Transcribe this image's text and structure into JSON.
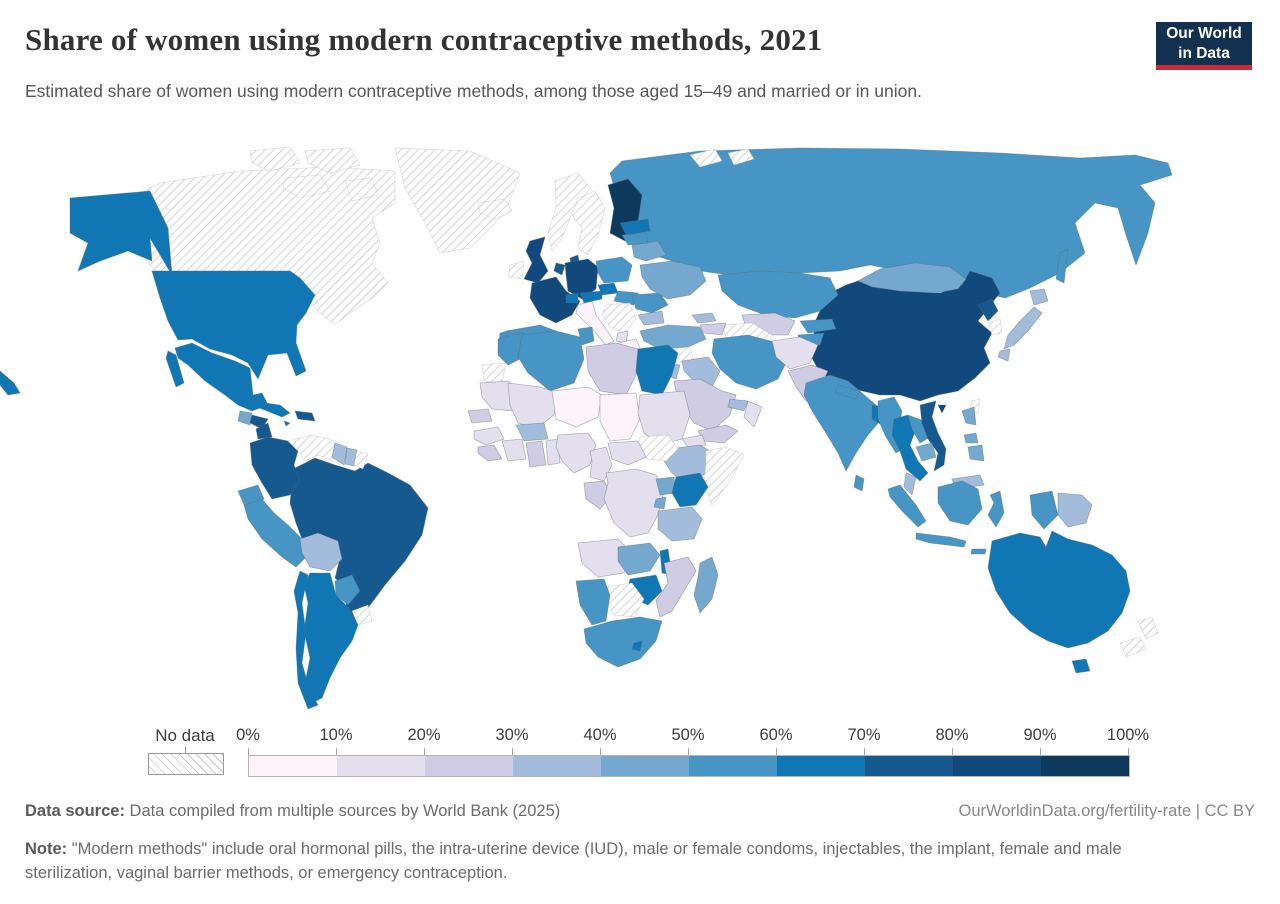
{
  "header": {
    "title": "Share of women using modern contraceptive methods, 2021",
    "subtitle": "Estimated share of women using modern contraceptive methods, among those aged 15–49 and married or in union.",
    "logo_line1": "Our World",
    "logo_line2": "in Data"
  },
  "legend": {
    "no_data_label": "No data",
    "tick_labels": [
      "0%",
      "10%",
      "20%",
      "30%",
      "40%",
      "50%",
      "60%",
      "70%",
      "80%",
      "90%",
      "100%"
    ],
    "colors": [
      "#fdf3f9",
      "#e4dfee",
      "#cfcce3",
      "#a3bcdc",
      "#74a8cf",
      "#4795c4",
      "#1076b4",
      "#15598f",
      "#11497c",
      "#0c395c"
    ]
  },
  "chart_data": {
    "type": "choropleth_map",
    "title": "Share of women using modern contraceptive methods, 2021",
    "unit": "%",
    "year": 2021,
    "bins": [
      0,
      10,
      20,
      30,
      40,
      50,
      60,
      70,
      80,
      90,
      100
    ],
    "countries": [
      {
        "name": "Canada",
        "no_data": true
      },
      {
        "name": "Greenland",
        "no_data": true
      },
      {
        "name": "United States",
        "value": 65
      },
      {
        "name": "Mexico",
        "value": 68
      },
      {
        "name": "Guatemala",
        "value": 47
      },
      {
        "name": "Honduras",
        "value": 72
      },
      {
        "name": "Nicaragua",
        "value": 77
      },
      {
        "name": "Costa Rica",
        "value": 74
      },
      {
        "name": "Panama",
        "value": 55
      },
      {
        "name": "Cuba",
        "value": 68
      },
      {
        "name": "Jamaica",
        "value": 62
      },
      {
        "name": "Dominican Republic",
        "value": 72
      },
      {
        "name": "Colombia",
        "value": 76
      },
      {
        "name": "Venezuela",
        "no_data": true
      },
      {
        "name": "Guyana",
        "value": 33
      },
      {
        "name": "Suriname",
        "value": 37
      },
      {
        "name": "French Guiana",
        "no_data": true
      },
      {
        "name": "Ecuador",
        "value": 58
      },
      {
        "name": "Peru",
        "value": 52
      },
      {
        "name": "Bolivia",
        "value": 38
      },
      {
        "name": "Brazil",
        "value": 77
      },
      {
        "name": "Paraguay",
        "value": 57
      },
      {
        "name": "Uruguay",
        "no_data": true
      },
      {
        "name": "Argentina",
        "value": 65
      },
      {
        "name": "Chile",
        "value": 67
      },
      {
        "name": "Iceland",
        "no_data": true
      },
      {
        "name": "Ireland",
        "no_data": true
      },
      {
        "name": "United Kingdom",
        "value": 84
      },
      {
        "name": "France",
        "value": 83
      },
      {
        "name": "Germany",
        "value": 86
      },
      {
        "name": "Norway",
        "no_data": true
      },
      {
        "name": "Sweden",
        "no_data": true
      },
      {
        "name": "Finland",
        "value": 92
      },
      {
        "name": "Denmark",
        "value": 72
      },
      {
        "name": "Netherlands",
        "value": 72
      },
      {
        "name": "Spain",
        "value": 56
      },
      {
        "name": "Portugal",
        "value": 56
      },
      {
        "name": "Italy",
        "value": 8
      },
      {
        "name": "Greece",
        "value": 9
      },
      {
        "name": "Switzerland",
        "value": 60
      },
      {
        "name": "Austria",
        "value": 65
      },
      {
        "name": "Poland",
        "value": 52
      },
      {
        "name": "Czechia",
        "value": 65
      },
      {
        "name": "Hungary",
        "value": 55
      },
      {
        "name": "Serbia",
        "no_data": true
      },
      {
        "name": "Albania",
        "value": 15
      },
      {
        "name": "Bulgaria",
        "value": 35
      },
      {
        "name": "Romania",
        "value": 55
      },
      {
        "name": "Ukraine",
        "value": 44
      },
      {
        "name": "Belarus",
        "value": 48
      },
      {
        "name": "Lithuania",
        "value": 55
      },
      {
        "name": "Latvia",
        "value": 60
      },
      {
        "name": "Russia",
        "value": 55
      },
      {
        "name": "Kazakhstan",
        "value": 50
      },
      {
        "name": "Uzbekistan",
        "value": 28
      },
      {
        "name": "Turkmenistan",
        "no_data": true
      },
      {
        "name": "Kyrgyzstan",
        "value": 55
      },
      {
        "name": "Tajikistan",
        "value": 50
      },
      {
        "name": "Georgia",
        "value": 30
      },
      {
        "name": "Azerbaijan",
        "value": 25
      },
      {
        "name": "Turkey",
        "value": 46
      },
      {
        "name": "Syria",
        "no_data": true
      },
      {
        "name": "Iraq",
        "value": 36
      },
      {
        "name": "Iran",
        "value": 55
      },
      {
        "name": "Israel",
        "value": 50
      },
      {
        "name": "Jordan",
        "value": 35
      },
      {
        "name": "Saudi Arabia",
        "value": 25
      },
      {
        "name": "United Arab Emirates",
        "value": 30
      },
      {
        "name": "Oman",
        "value": 16
      },
      {
        "name": "Yemen",
        "value": 28
      },
      {
        "name": "Afghanistan",
        "value": 17
      },
      {
        "name": "Pakistan",
        "value": 25
      },
      {
        "name": "India",
        "value": 56
      },
      {
        "name": "Nepal",
        "value": 50
      },
      {
        "name": "Bangladesh",
        "value": 62
      },
      {
        "name": "Sri Lanka",
        "value": 52
      },
      {
        "name": "Myanmar",
        "value": 52
      },
      {
        "name": "Thailand",
        "value": 67
      },
      {
        "name": "Laos",
        "value": 54
      },
      {
        "name": "Cambodia",
        "value": 42
      },
      {
        "name": "Vietnam",
        "value": 72
      },
      {
        "name": "Malaysia",
        "value": 36
      },
      {
        "name": "China",
        "value": 84
      },
      {
        "name": "Mongolia",
        "value": 46
      },
      {
        "name": "North Korea",
        "value": 72
      },
      {
        "name": "South Korea",
        "no_data": true
      },
      {
        "name": "Japan",
        "value": 33
      },
      {
        "name": "Taiwan",
        "no_data": true
      },
      {
        "name": "Philippines",
        "value": 43
      },
      {
        "name": "Indonesia",
        "value": 57
      },
      {
        "name": "Papua New Guinea",
        "value": 32
      },
      {
        "name": "Australia",
        "value": 65
      },
      {
        "name": "New Zealand",
        "no_data": true
      },
      {
        "name": "Morocco",
        "value": 58
      },
      {
        "name": "Western Sahara",
        "no_data": true
      },
      {
        "name": "Algeria",
        "value": 53
      },
      {
        "name": "Tunisia",
        "value": 51
      },
      {
        "name": "Libya",
        "value": 27
      },
      {
        "name": "Egypt",
        "value": 61
      },
      {
        "name": "Mauritania",
        "value": 15
      },
      {
        "name": "Mali",
        "value": 16
      },
      {
        "name": "Senegal",
        "value": 24
      },
      {
        "name": "Guinea",
        "value": 16
      },
      {
        "name": "Liberia",
        "value": 23
      },
      {
        "name": "Ivory Coast",
        "value": 19
      },
      {
        "name": "Burkina Faso",
        "value": 33
      },
      {
        "name": "Ghana",
        "value": 26
      },
      {
        "name": "Benin",
        "value": 17
      },
      {
        "name": "Nigeria",
        "value": 14
      },
      {
        "name": "Niger",
        "value": 9
      },
      {
        "name": "Chad",
        "value": 7
      },
      {
        "name": "Sudan",
        "value": 13
      },
      {
        "name": "Eritrea",
        "value": 13
      },
      {
        "name": "Ethiopia",
        "value": 36
      },
      {
        "name": "Somalia",
        "no_data": true
      },
      {
        "name": "South Sudan",
        "no_data": true
      },
      {
        "name": "Central African Republic",
        "value": 14
      },
      {
        "name": "Cameroon",
        "value": 18
      },
      {
        "name": "Congo",
        "value": 24
      },
      {
        "name": "Democratic Republic of Congo",
        "value": 15
      },
      {
        "name": "Uganda",
        "value": 42
      },
      {
        "name": "Kenya",
        "value": 63
      },
      {
        "name": "Rwanda",
        "value": 48
      },
      {
        "name": "Tanzania",
        "value": 34
      },
      {
        "name": "Angola",
        "value": 14
      },
      {
        "name": "Zambia",
        "value": 43
      },
      {
        "name": "Malawi",
        "value": 64
      },
      {
        "name": "Mozambique",
        "value": 27
      },
      {
        "name": "Zimbabwe",
        "value": 66
      },
      {
        "name": "Botswana",
        "no_data": true
      },
      {
        "name": "Namibia",
        "value": 56
      },
      {
        "name": "South Africa",
        "value": 54
      },
      {
        "name": "Lesotho",
        "value": 60
      },
      {
        "name": "Madagascar",
        "value": 44
      }
    ]
  },
  "footer": {
    "source_label": "Data source:",
    "source_text": " Data compiled from multiple sources by World Bank (2025)",
    "attribution": "OurWorldinData.org/fertility-rate | CC BY",
    "note_label": "Note:",
    "note_text": " \"Modern methods\" include oral hormonal pills, the intra-uterine device (IUD), male or female condoms, injectables, the implant, female and male sterilization, vaginal barrier methods, or emergency contraception."
  }
}
